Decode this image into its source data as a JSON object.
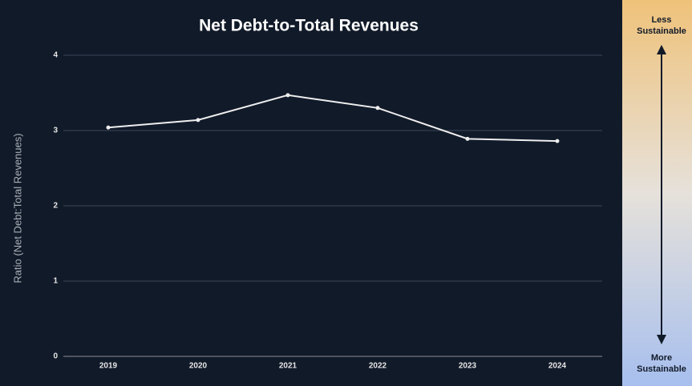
{
  "chart_data": {
    "type": "line",
    "title": "Net Debt-to-Total Revenues",
    "y_label": "Ratio (Net Debt:Total Revenues)",
    "categories": [
      "2019",
      "2020",
      "2021",
      "2022",
      "2023",
      "2024"
    ],
    "values": [
      3.04,
      3.14,
      3.47,
      3.3,
      2.89,
      2.86
    ],
    "color": "#eeeeee",
    "ylim": [
      0,
      4
    ],
    "yticks": [
      0,
      1,
      2,
      3,
      4
    ],
    "grid": true
  },
  "side_panel": {
    "top_label": [
      "Less",
      "Sustainable"
    ],
    "bottom_label": [
      "More",
      "Sustainable"
    ]
  }
}
